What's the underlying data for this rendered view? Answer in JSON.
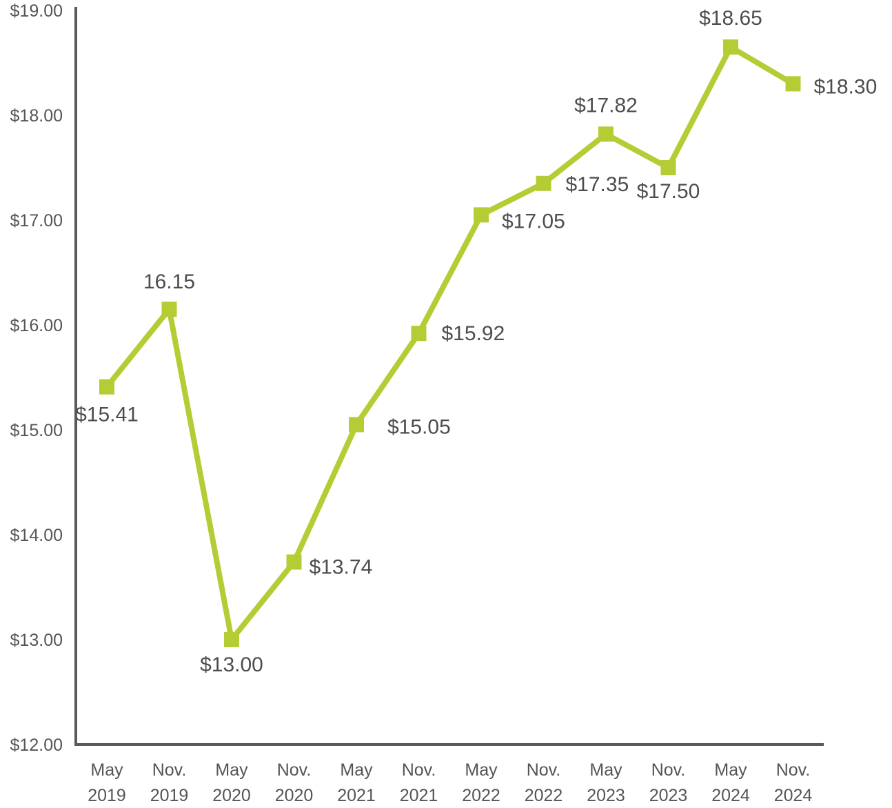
{
  "chart_data": {
    "type": "line",
    "title": "",
    "xlabel": "",
    "ylabel": "",
    "categories": [
      [
        "May",
        "2019"
      ],
      [
        "Nov.",
        "2019"
      ],
      [
        "May",
        "2020"
      ],
      [
        "Nov.",
        "2020"
      ],
      [
        "May",
        "2021"
      ],
      [
        "Nov.",
        "2021"
      ],
      [
        "May",
        "2022"
      ],
      [
        "Nov.",
        "2022"
      ],
      [
        "May",
        "2023"
      ],
      [
        "Nov.",
        "2023"
      ],
      [
        "May",
        "2024"
      ],
      [
        "Nov.",
        "2024"
      ]
    ],
    "series": [
      {
        "values": [
          15.41,
          16.15,
          13.0,
          13.74,
          15.05,
          15.92,
          17.05,
          17.35,
          17.82,
          17.5,
          18.65,
          18.3
        ],
        "data_labels": [
          "$15.41",
          "16.15",
          "$13.00",
          "$13.74",
          "$15.05",
          "$15.92",
          "$17.05",
          "$17.35",
          "$17.82",
          "$17.50",
          "$18.65",
          "$18.30"
        ]
      }
    ],
    "ylim": [
      12,
      19
    ],
    "yticks": [
      12,
      13,
      14,
      15,
      16,
      17,
      18,
      19
    ],
    "ytick_labels": [
      "$12.00",
      "$13.00",
      "$14.00",
      "$15.00",
      "$16.00",
      "$17.00",
      "$18.00",
      "$19.00"
    ],
    "grid": false,
    "legend": "none",
    "colors": {
      "line": "#b5cc34",
      "axis": "#5a5a5a",
      "text": "#4d4d4d"
    }
  }
}
